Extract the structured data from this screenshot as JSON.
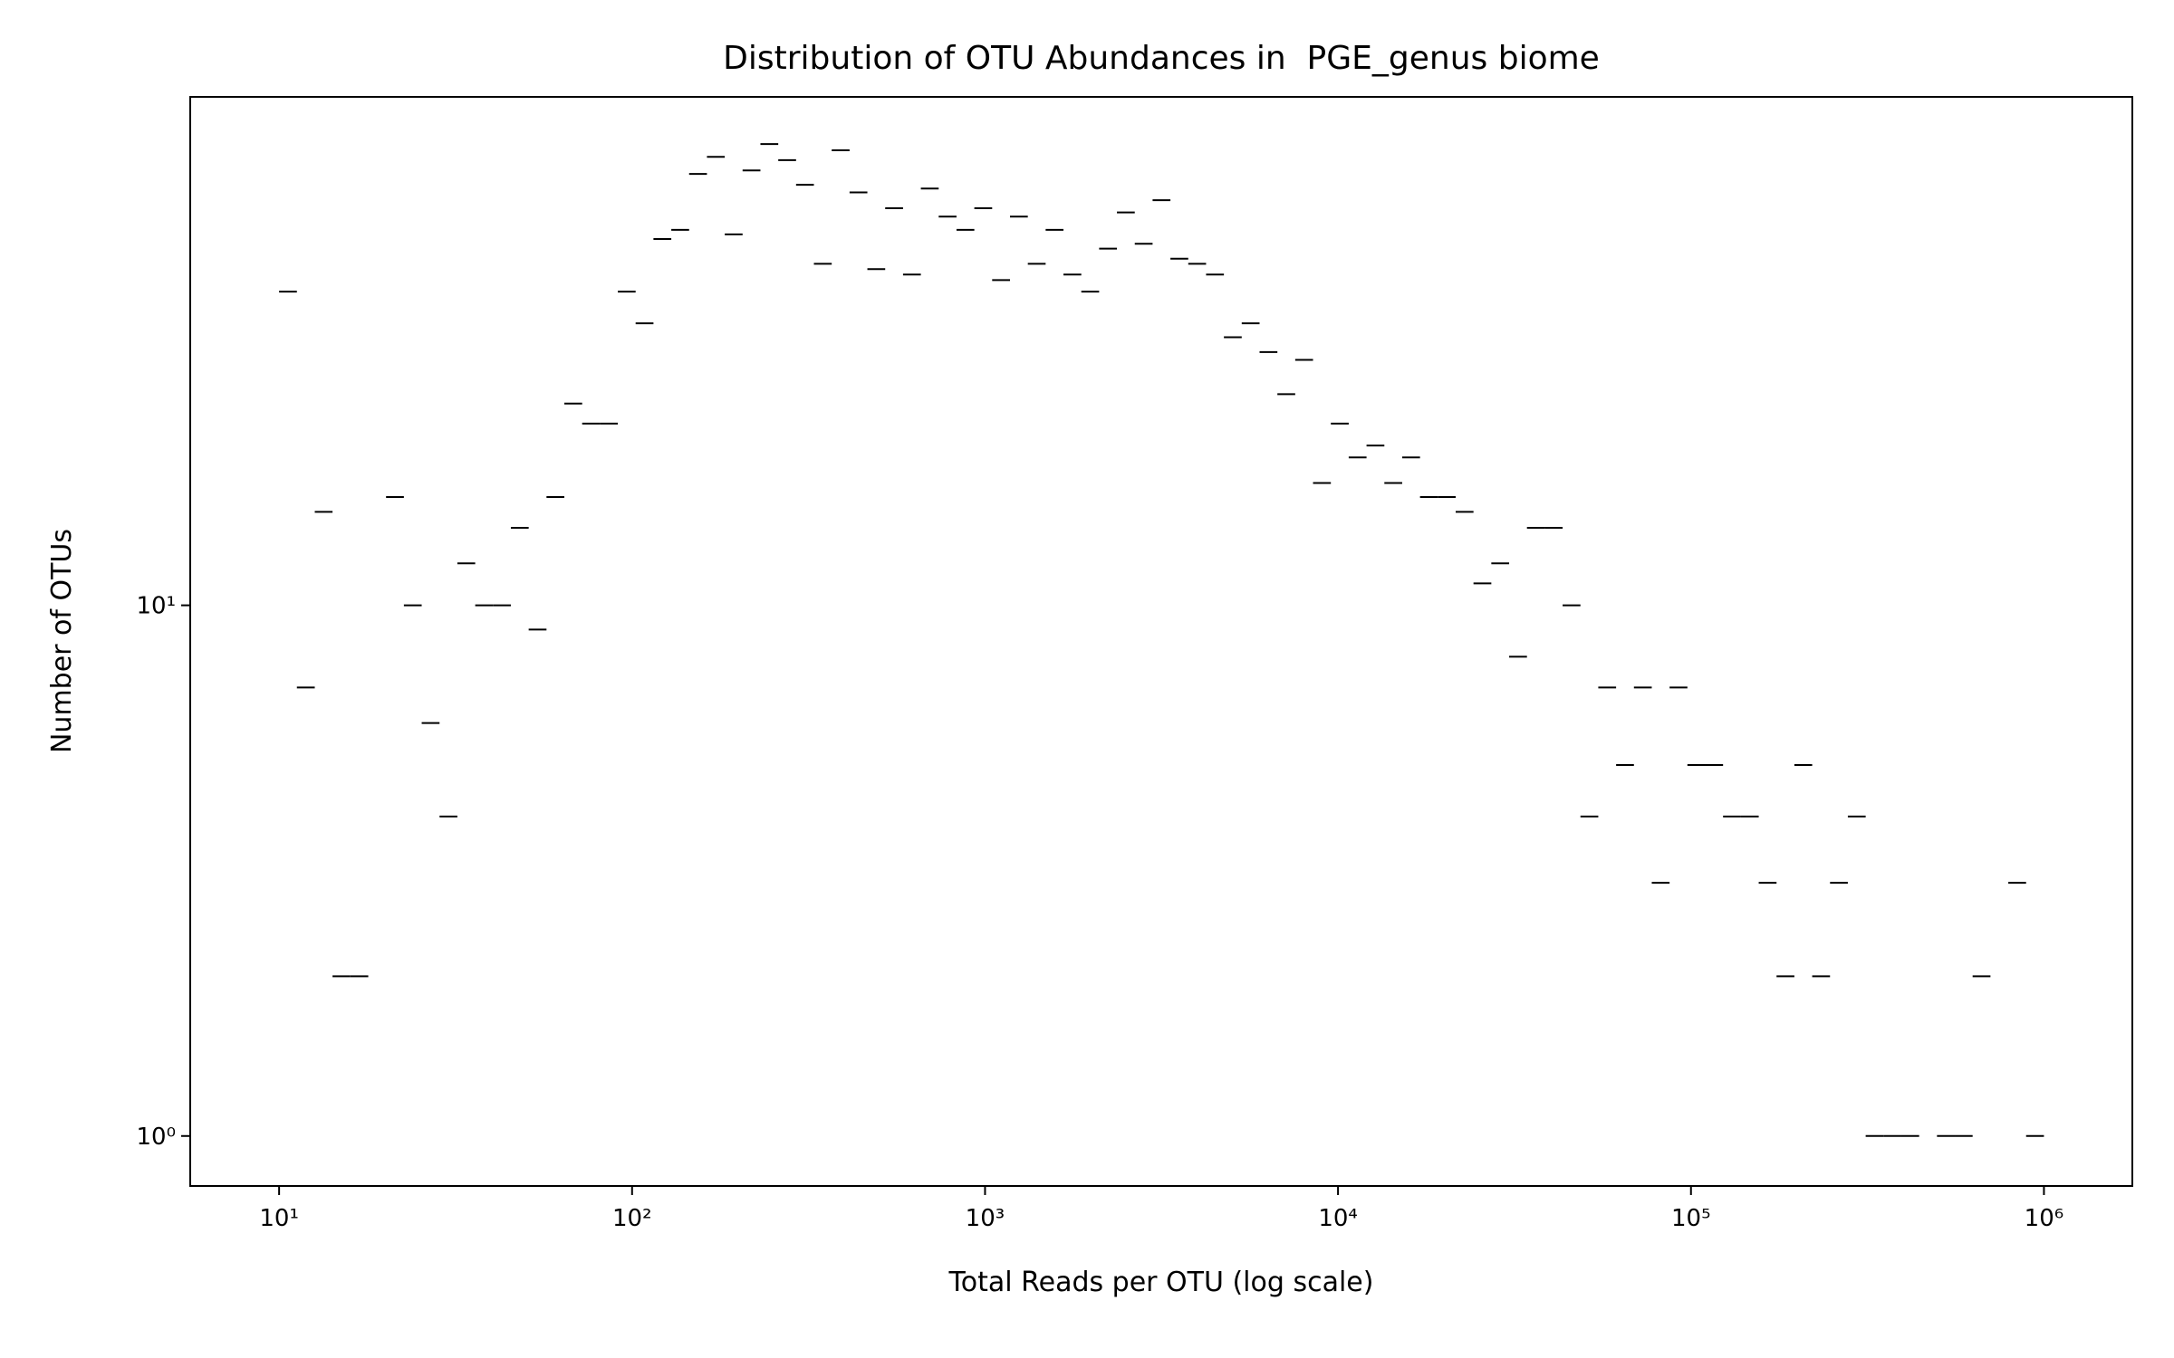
{
  "chart_data": {
    "type": "histogram",
    "title": "Distribution of OTU Abundances in  PGE_genus biome",
    "xlabel": "Total Reads per OTU (log scale)",
    "ylabel": "Number of OTUs",
    "xscale": "log",
    "yscale": "log",
    "color": "#000000",
    "bins": [
      10,
      11.23,
      12.62,
      14.17,
      15.92,
      17.89,
      20.09,
      22.57,
      25.35,
      28.48,
      31.99,
      35.94,
      40.37,
      45.35,
      50.94,
      57.22,
      64.28,
      72.21,
      81.11,
      91.12,
      102.35,
      114.97,
      129.15,
      145.08,
      162.97,
      183.07,
      205.64,
      231.0,
      259.49,
      291.49,
      327.44,
      367.82,
      413.18,
      464.13,
      521.37,
      585.67,
      657.89,
      739.02,
      830.16,
      932.54,
      1047.5,
      1176.8,
      1321.9,
      1484.9,
      1668.0,
      1873.7,
      2104.8,
      2364.3,
      2655.9,
      2983.4,
      3351.3,
      3764.6,
      4228.9,
      4750.4,
      5336.2,
      5994.3,
      6733.5,
      7563.9,
      8496.6,
      9544.4,
      10723,
      12045,
      13531,
      15200,
      17074,
      19180,
      21545,
      24202,
      27187,
      30539,
      34305,
      38536,
      43288,
      48627,
      54624,
      61360,
      68927,
      77427,
      86975,
      97701,
      109750,
      123284,
      138488,
      155566,
      174750,
      196300,
      220508,
      247700,
      278247,
      312561,
      351105,
      394403,
      443040,
      497677,
      559050,
      627992,
      705436,
      792431,
      890153,
      1000000
    ],
    "values": [
      39,
      7,
      15,
      2,
      2,
      0,
      16,
      10,
      6,
      4,
      12,
      10,
      10,
      14,
      9,
      16,
      24,
      22,
      22,
      39,
      34,
      49,
      51,
      65,
      70,
      50,
      66,
      74,
      69,
      62,
      44,
      72,
      60,
      43,
      56,
      42,
      61,
      54,
      51,
      56,
      41,
      54,
      44,
      51,
      42,
      39,
      47,
      55,
      48,
      58,
      45,
      44,
      42,
      32,
      34,
      30,
      25,
      29,
      17,
      22,
      19,
      20,
      17,
      19,
      16,
      16,
      15,
      11,
      12,
      8,
      14,
      14,
      10,
      4,
      7,
      5,
      7,
      3,
      7,
      5,
      5,
      4,
      4,
      3,
      2,
      5,
      2,
      3,
      4,
      1,
      1,
      1,
      0,
      1,
      1,
      2,
      0,
      3,
      1
    ],
    "xlim": [
      5.6,
      1780000
    ],
    "ylim": [
      0.805,
      90.8
    ],
    "xticks": [
      {
        "value": 10,
        "label": "10¹"
      },
      {
        "value": 100,
        "label": "10²"
      },
      {
        "value": 1000,
        "label": "10³"
      },
      {
        "value": 10000,
        "label": "10⁴"
      },
      {
        "value": 100000,
        "label": "10⁵"
      },
      {
        "value": 1000000,
        "label": "10⁶"
      }
    ],
    "yticks": [
      {
        "value": 1,
        "label": "10⁰"
      },
      {
        "value": 10,
        "label": "10¹"
      }
    ]
  }
}
